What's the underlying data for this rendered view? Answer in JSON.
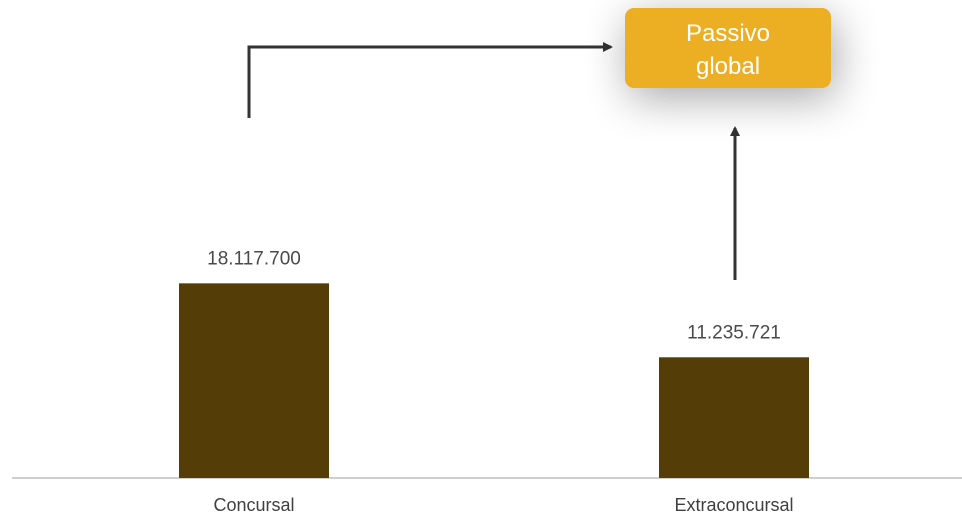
{
  "chart_data": {
    "type": "bar",
    "categories": [
      "Concursal",
      "Extraconcursal"
    ],
    "values": [
      18117700,
      11235721
    ],
    "value_labels": [
      "18.117.700",
      "11.235.721"
    ],
    "bar_color": "#553d08",
    "legend": "none",
    "grid": false,
    "ylim": [
      0,
      21500000
    ],
    "callout": {
      "label_line1": "Passivo",
      "label_line2": "global",
      "color": "#ecae22",
      "text_color": "#ffffff"
    },
    "arrow_color": "#333333",
    "axis_color": "#bfbfbf"
  }
}
